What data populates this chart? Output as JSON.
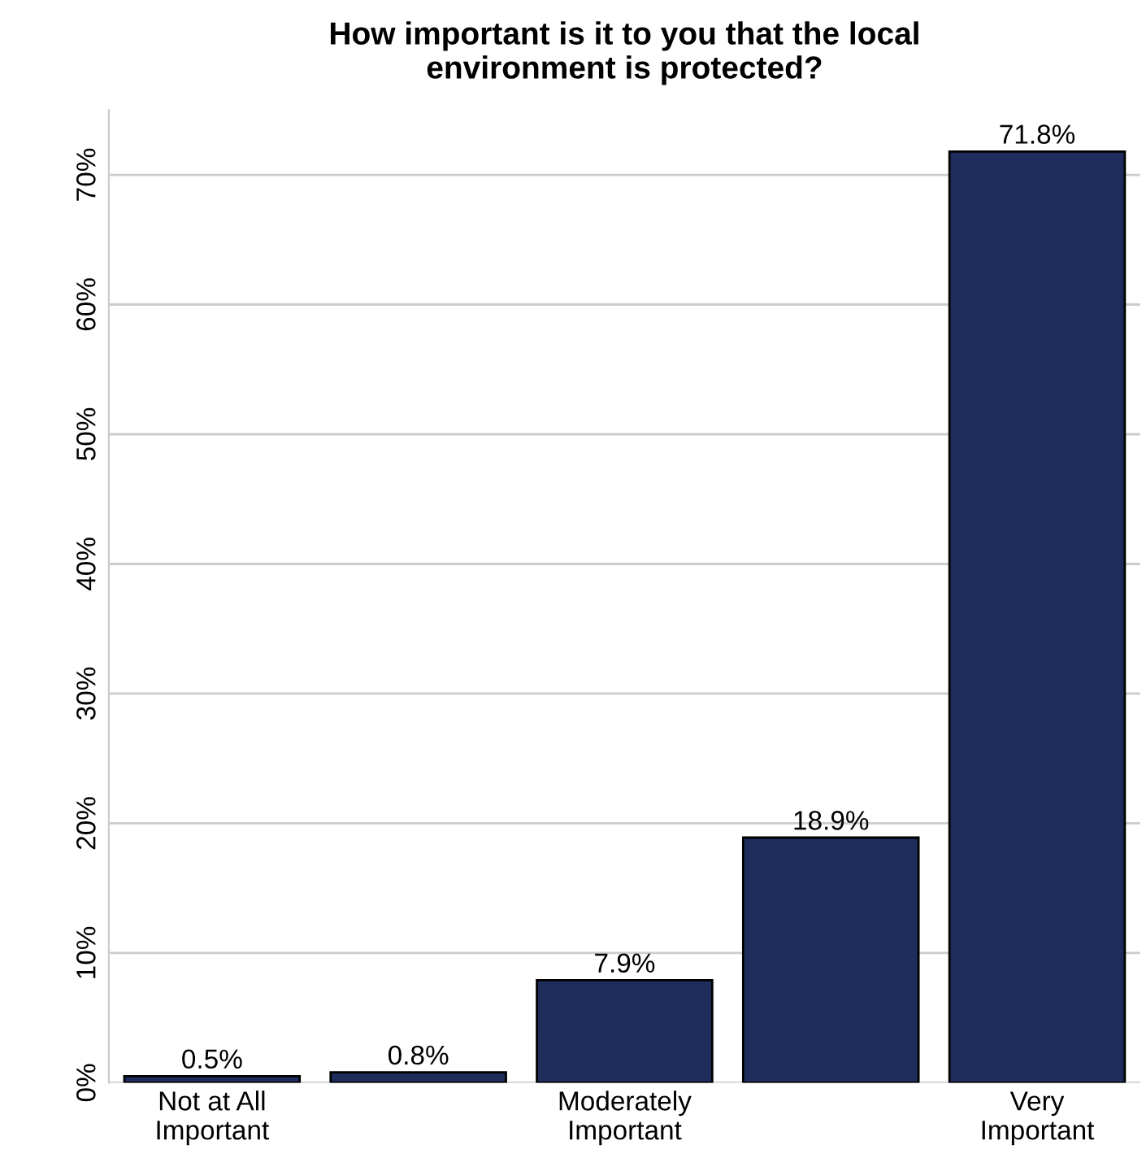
{
  "chart_data": {
    "type": "bar",
    "title": "How important is it to you that the local\nenvironment is protected?",
    "categories": [
      "Not at All\nImportant",
      null,
      "Moderately\nImportant",
      null,
      "Very\nImportant"
    ],
    "values": [
      0.5,
      0.8,
      7.9,
      18.9,
      71.8
    ],
    "value_labels": [
      "0.5%",
      "0.8%",
      "7.9%",
      "18.9%",
      "71.8%"
    ],
    "color": "#1f2d5c",
    "ylim": [
      0,
      75
    ],
    "yticks": [
      {
        "value": 0,
        "label": "0%"
      },
      {
        "value": 10,
        "label": "10%"
      },
      {
        "value": 20,
        "label": "20%"
      },
      {
        "value": 30,
        "label": "30%"
      },
      {
        "value": 40,
        "label": "40%"
      },
      {
        "value": 50,
        "label": "50%"
      },
      {
        "value": 60,
        "label": "60%"
      },
      {
        "value": 70,
        "label": "70%"
      }
    ],
    "grid": "y",
    "legend": false
  }
}
